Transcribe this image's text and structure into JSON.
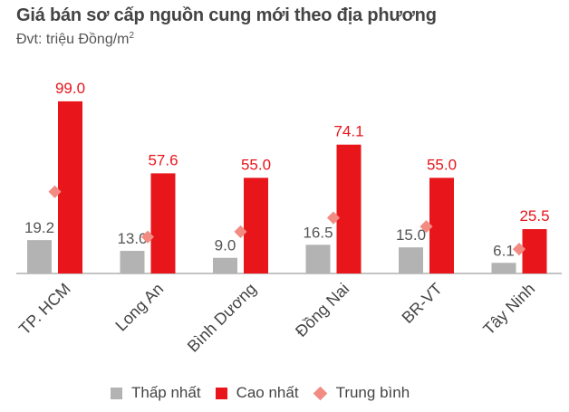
{
  "title": "Giá bán sơ cấp nguồn cung mới theo địa phương",
  "unit_text": "Đvt: triệu Đồng/m",
  "unit_sup": "2",
  "colors": {
    "min": "#b3b3b3",
    "max": "#e8151b",
    "avg": "#f28b82",
    "axis": "#b0b0b0",
    "label_min": "#555555",
    "label_max": "#e8151b",
    "category": "#444444"
  },
  "legend": [
    {
      "label": "Thấp nhất",
      "color": "#b3b3b3",
      "shape": "square"
    },
    {
      "label": "Cao nhất",
      "color": "#e8151b",
      "shape": "square"
    },
    {
      "label": "Trung bình",
      "color": "#f28b82",
      "shape": "diamond"
    }
  ],
  "chart_data": {
    "type": "bar",
    "title": "Giá bán sơ cấp nguồn cung mới theo địa phương",
    "subtitle": "Đvt: triệu Đồng/m²",
    "categories": [
      "TP. HCM",
      "Long An",
      "Bình Dương",
      "Đồng Nai",
      "BR-VT",
      "Tây Ninh"
    ],
    "series": [
      {
        "name": "Thấp nhất",
        "kind": "bar",
        "values": [
          19.2,
          13.0,
          9.0,
          16.5,
          15.0,
          6.1
        ],
        "labels": [
          "19.2",
          "13.0",
          "9.0",
          "16.5",
          "15.0",
          "6.1"
        ]
      },
      {
        "name": "Cao nhất",
        "kind": "bar",
        "values": [
          99.0,
          57.6,
          55.0,
          74.1,
          55.0,
          25.5
        ],
        "labels": [
          "99.0",
          "57.6",
          "55.0",
          "74.1",
          "55.0",
          "25.5"
        ]
      },
      {
        "name": "Trung bình",
        "kind": "marker",
        "values": [
          47,
          21,
          24,
          32,
          27,
          14
        ]
      }
    ],
    "ylim": [
      0,
      100
    ],
    "grid": false,
    "legend_position": "bottom"
  }
}
